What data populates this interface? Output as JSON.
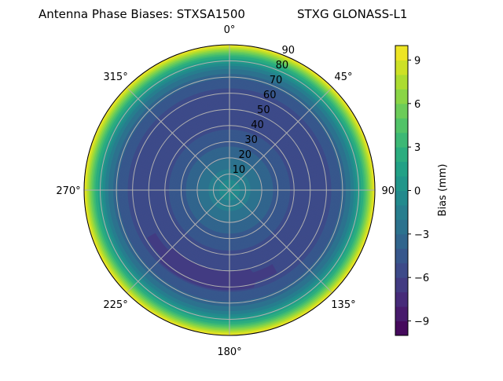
{
  "chart_data": {
    "type": "polar-contour",
    "title_left": "Antenna Phase Biases: STXSA1500",
    "title_right": "STXG GLONASS-L1",
    "angular_direction": "clockwise",
    "zero_location": "north",
    "angle_ticks": [
      "0°",
      "45°",
      "90°",
      "135°",
      "180°",
      "225°",
      "270°",
      "315°"
    ],
    "radial_ticks": [
      "10",
      "20",
      "30",
      "40",
      "50",
      "60",
      "70",
      "80",
      "90"
    ],
    "radial_range": [
      0,
      90
    ],
    "grid": true,
    "colormap": "viridis",
    "color_range": [
      -10,
      10
    ],
    "levels": 20,
    "colorbar_label": "Bias (mm)",
    "colorbar_ticks": [
      "9",
      "6",
      "3",
      "0",
      "−3",
      "−6",
      "−9"
    ],
    "colorbar_tick_values": [
      9,
      6,
      3,
      0,
      -3,
      -6,
      -9
    ],
    "radial_profile": {
      "zenith": [
        0,
        5,
        10,
        15,
        20,
        25,
        30,
        35,
        40,
        45,
        50,
        55,
        60,
        65,
        70,
        75,
        78,
        81,
        84,
        87,
        90
      ],
      "bias": [
        -0.5,
        -0.8,
        -1.5,
        -2.3,
        -3.1,
        -3.8,
        -4.3,
        -4.8,
        -5.2,
        -5.4,
        -5.5,
        -5.5,
        -5.3,
        -4.8,
        -3.8,
        -2.0,
        -0.5,
        1.5,
        4.0,
        7.0,
        10.0
      ]
    },
    "local_minimum": {
      "azimuth_range": [
        150,
        240
      ],
      "zenith_range": [
        50,
        62
      ],
      "bias": -6.5
    }
  }
}
